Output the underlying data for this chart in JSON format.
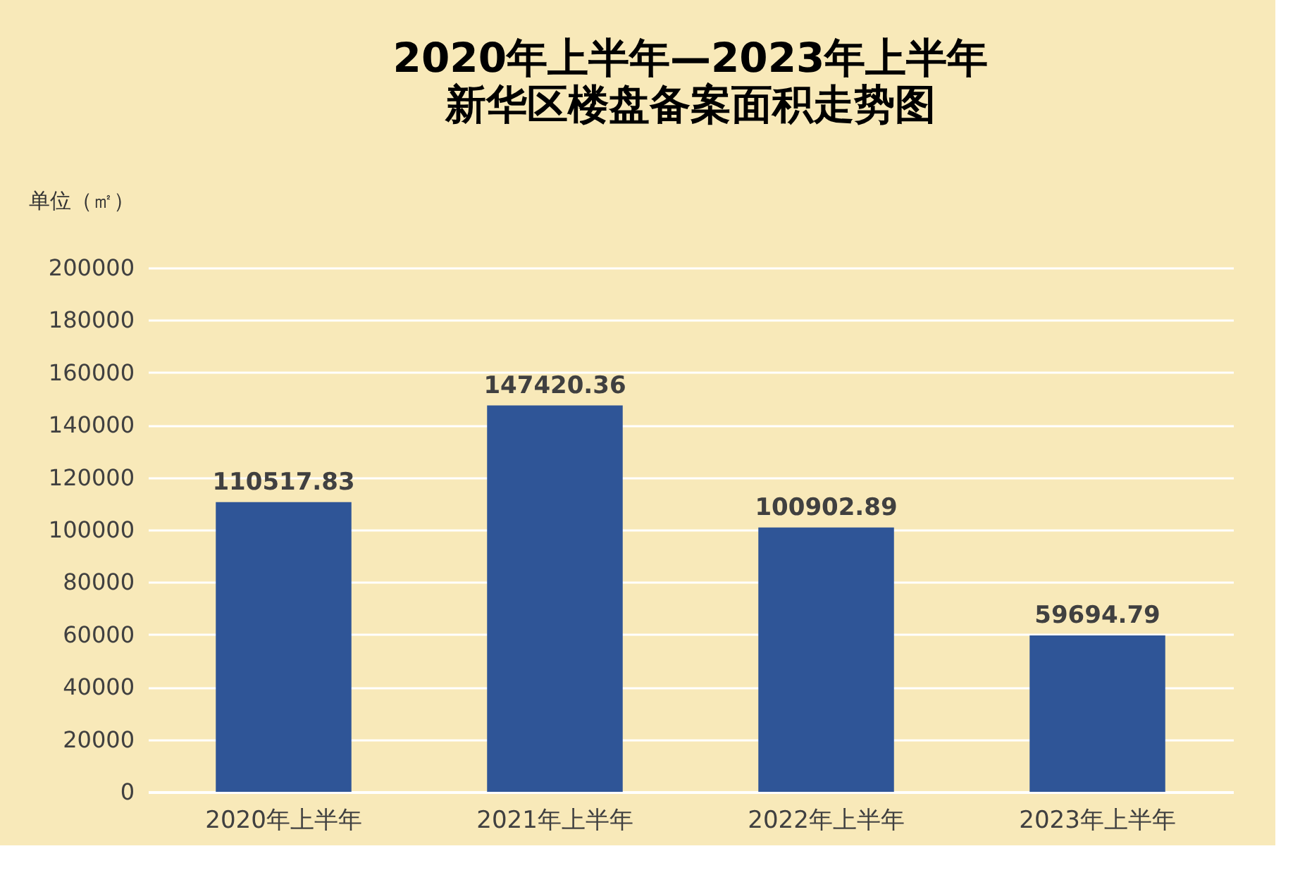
{
  "chart_data": {
    "type": "bar",
    "title": "2020年上半年—2023年上半年",
    "subtitle": "新华区楼盘备案面积走势图",
    "ylabel": "单位（㎡）",
    "categories": [
      "2020年上半年",
      "2021年上半年",
      "2022年上半年",
      "2023年上半年"
    ],
    "values": [
      110517.83,
      147420.36,
      100902.89,
      59694.79
    ],
    "color": "#2f5597",
    "ylim": [
      0,
      200000
    ],
    "yticks": [
      0,
      20000,
      40000,
      60000,
      80000,
      100000,
      120000,
      140000,
      160000,
      180000,
      200000
    ],
    "grid": "y",
    "data_labels": true
  }
}
